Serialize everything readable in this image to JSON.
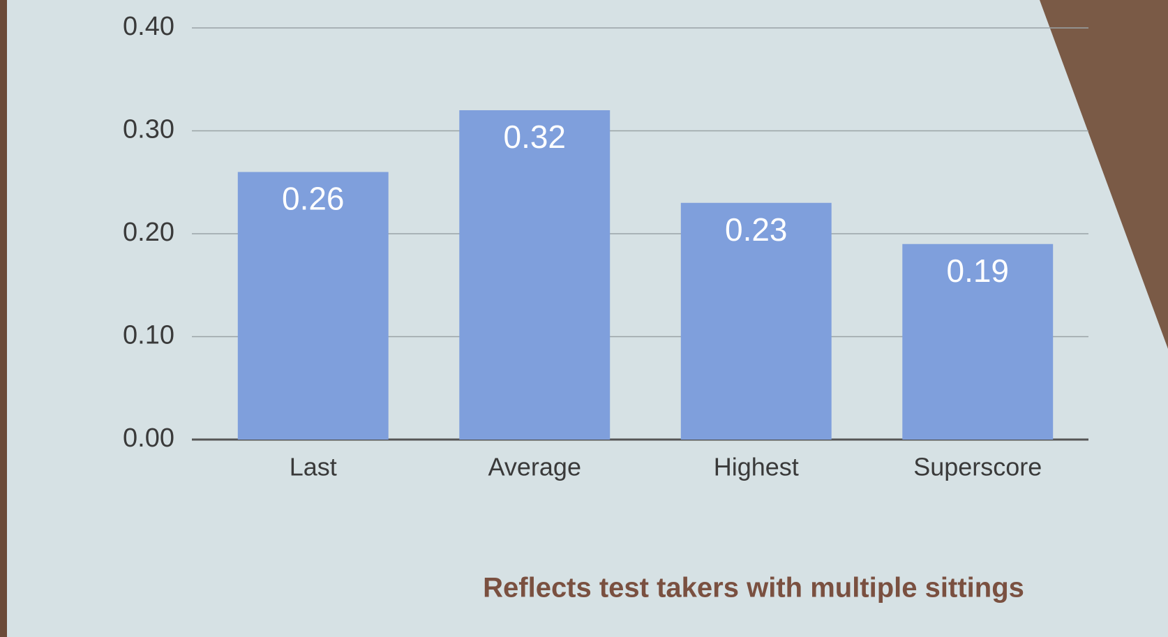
{
  "chart_data": {
    "type": "bar",
    "categories": [
      "Last",
      "Average",
      "Highest",
      "Superscore"
    ],
    "values": [
      0.26,
      0.32,
      0.23,
      0.19
    ],
    "color": "#7f9fdc",
    "ylim": [
      0,
      0.4
    ],
    "yticks": [
      {
        "value": 0,
        "label": "0.00"
      },
      {
        "value": 0.1,
        "label": "0.10"
      },
      {
        "value": 0.2,
        "label": "0.20"
      },
      {
        "value": 0.3,
        "label": "0.30"
      },
      {
        "value": 0.4,
        "label": "0.40"
      }
    ],
    "grid": true,
    "note": "Reflects test takers with multiple sittings"
  }
}
